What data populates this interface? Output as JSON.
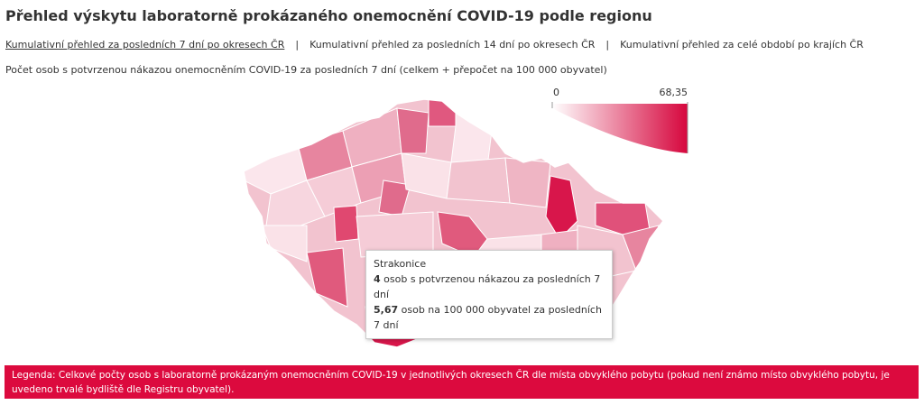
{
  "header": {
    "title": "Přehled výskytu laboratorně prokázaného onemocnění COVID-19 podle regionu"
  },
  "tabs": [
    "Kumulativní přehled za posledních 7 dní po okresech ČR",
    "Kumulativní přehled za posledních 14 dní po okresech ČR",
    "Kumulativní přehled za celé období po krajích ČR"
  ],
  "subtitle": "Počet osob s potvrzenou nákazou onemocněním COVID-19 za posledních 7 dní (celkem + přepočet na 100 000 obyvatel)",
  "scale": {
    "min": "0",
    "max": "68,35"
  },
  "tooltip": {
    "district": "Strakonice",
    "line1": {
      "value": "4",
      "text": " osob s potvrzenou nákazou za posledních 7 dní"
    },
    "line2": {
      "value": "5,67",
      "text": " osob na 100 000 obyvatel za posledních 7 dní"
    }
  },
  "legend": "Legenda: Celkové počty osob s laboratorně prokázaným onemocněním COVID-19 v jednotlivých okresech ČR dle místa obvyklého pobytu (pokud není známo místo obvyklého pobytu, je uvedeno trvalé bydliště dle Registru obyvatel)."
}
